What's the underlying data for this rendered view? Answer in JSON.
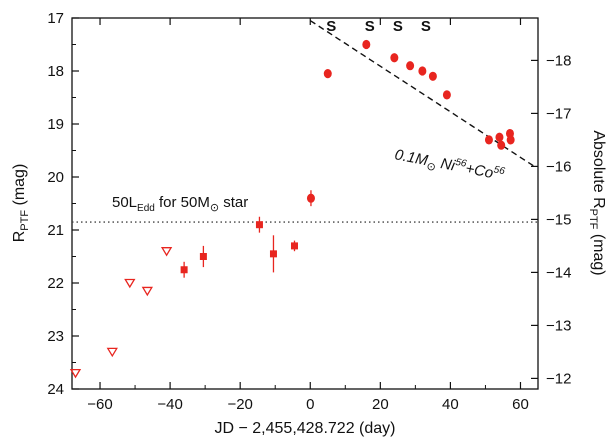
{
  "chart_data": {
    "type": "scatter",
    "xlabel": "JD − 2,455,428.722 (day)",
    "ylabel_left": "R",
    "ylabel_left_sub": "PTF",
    "ylabel_left_unit": " (mag)",
    "ylabel_right": "Absolute R",
    "ylabel_right_sub": "PTF",
    "ylabel_right_unit": " (mag)",
    "xlim": [
      -68,
      65
    ],
    "ylim_left": [
      24,
      17
    ],
    "ylim_right_offset": -35.8,
    "x_ticks": [
      -60,
      -40,
      -20,
      0,
      20,
      40,
      60
    ],
    "x_tick_labels": [
      "−60",
      "−40",
      "−20",
      "0",
      "20",
      "40",
      "60"
    ],
    "y_ticks_left": [
      17,
      18,
      19,
      20,
      21,
      22,
      23,
      24
    ],
    "y_ticks_right": [
      -18,
      -17,
      -16,
      -15,
      -14,
      -13,
      -12
    ],
    "y_tick_labels_right": [
      "−18",
      "−17",
      "−16",
      "−15",
      "−14",
      "−13",
      "−12"
    ],
    "colors": {
      "data": "#e8251f",
      "axis": "#111111",
      "model": "#111111"
    },
    "series": [
      {
        "marker": "circle",
        "points": [
          {
            "x": 0.2,
            "y": 20.4,
            "err": 0.15
          },
          {
            "x": 5.0,
            "y": 18.05,
            "err": 0.05
          },
          {
            "x": 16.0,
            "y": 17.5,
            "err": 0.03
          },
          {
            "x": 24.0,
            "y": 17.75,
            "err": 0.03
          },
          {
            "x": 28.5,
            "y": 17.9,
            "err": 0.03
          },
          {
            "x": 32.0,
            "y": 18.0,
            "err": 0.03
          },
          {
            "x": 35.0,
            "y": 18.1,
            "err": 0.03
          },
          {
            "x": 39.0,
            "y": 18.45,
            "err": 0.03
          },
          {
            "x": 51.0,
            "y": 19.3,
            "err": 0.04
          },
          {
            "x": 54.0,
            "y": 19.25,
            "err": 0.04
          },
          {
            "x": 54.5,
            "y": 19.4,
            "err": 0.04
          },
          {
            "x": 57.0,
            "y": 19.18,
            "err": 0.04
          },
          {
            "x": 57.2,
            "y": 19.3,
            "err": 0.04
          }
        ]
      },
      {
        "marker": "square",
        "points": [
          {
            "x": -36.0,
            "y": 21.75,
            "err": 0.15
          },
          {
            "x": -30.5,
            "y": 21.5,
            "err": 0.2
          },
          {
            "x": -14.5,
            "y": 20.9,
            "err": 0.15
          },
          {
            "x": -10.5,
            "y": 21.45,
            "err": 0.35
          },
          {
            "x": -4.5,
            "y": 21.3,
            "err": 0.1
          }
        ]
      },
      {
        "marker": "triangle-down-open",
        "points": [
          {
            "x": -67.0,
            "y": 23.7
          },
          {
            "x": -56.5,
            "y": 23.3
          },
          {
            "x": -51.5,
            "y": 22.0
          },
          {
            "x": -46.5,
            "y": 22.15
          },
          {
            "x": -41.0,
            "y": 21.4
          }
        ]
      }
    ],
    "spectra_x": [
      5.0,
      16.0,
      24.0,
      32.0
    ],
    "spectra_label": "S",
    "eddington_level": 20.85,
    "eddington_label_a": "50L",
    "eddington_label_sub": "Edd",
    "eddington_label_b": " for 50M",
    "eddington_label_sun": "⊙",
    "eddington_label_c": " star",
    "model_curve": {
      "label_a": "0.1M",
      "label_sun": "⊙",
      "label_b": " Ni",
      "label_sup1": "56",
      "label_c": "+Co",
      "label_sup2": "56",
      "x0": 0,
      "m0": 17.05,
      "slope": 0.043,
      "x_start": 0,
      "x_end": 64
    }
  }
}
